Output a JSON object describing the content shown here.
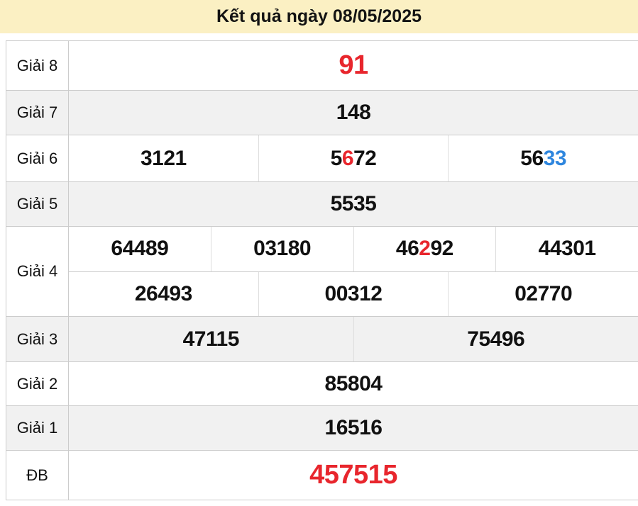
{
  "title": "Kết quả ngày 08/05/2025",
  "colors": {
    "red": "#e8262d",
    "blue": "#2e86de",
    "black": "#111111",
    "header_bg": "#fbf0c3",
    "alt_row_bg": "#f1f1f1",
    "border": "#cccccc"
  },
  "table": {
    "rows": [
      {
        "label": "Giải 8",
        "emphasis": true,
        "lines": [
          {
            "cells": [
              {
                "parts": [
                  {
                    "t": "91",
                    "c": "red"
                  }
                ]
              }
            ]
          }
        ]
      },
      {
        "label": "Giải 7",
        "emphasis": false,
        "lines": [
          {
            "cells": [
              {
                "parts": [
                  {
                    "t": "148"
                  }
                ]
              }
            ]
          }
        ]
      },
      {
        "label": "Giải 6",
        "emphasis": false,
        "lines": [
          {
            "cells": [
              {
                "parts": [
                  {
                    "t": "3121"
                  }
                ]
              },
              {
                "parts": [
                  {
                    "t": "5"
                  },
                  {
                    "t": "6",
                    "c": "red"
                  },
                  {
                    "t": "72"
                  }
                ]
              },
              {
                "parts": [
                  {
                    "t": "56"
                  },
                  {
                    "t": "33",
                    "c": "blue"
                  }
                ]
              }
            ]
          }
        ]
      },
      {
        "label": "Giải 5",
        "emphasis": false,
        "lines": [
          {
            "cells": [
              {
                "parts": [
                  {
                    "t": "5535"
                  }
                ]
              }
            ]
          }
        ]
      },
      {
        "label": "Giải 4",
        "emphasis": false,
        "lines": [
          {
            "cells": [
              {
                "parts": [
                  {
                    "t": "64489"
                  }
                ]
              },
              {
                "parts": [
                  {
                    "t": "03180"
                  }
                ]
              },
              {
                "parts": [
                  {
                    "t": "46"
                  },
                  {
                    "t": "2",
                    "c": "red"
                  },
                  {
                    "t": "92"
                  }
                ]
              },
              {
                "parts": [
                  {
                    "t": "44301"
                  }
                ]
              }
            ]
          },
          {
            "cells": [
              {
                "parts": [
                  {
                    "t": "26493"
                  }
                ]
              },
              {
                "parts": [
                  {
                    "t": "00312"
                  }
                ]
              },
              {
                "parts": [
                  {
                    "t": "02770"
                  }
                ]
              }
            ]
          }
        ]
      },
      {
        "label": "Giải 3",
        "emphasis": false,
        "lines": [
          {
            "cells": [
              {
                "parts": [
                  {
                    "t": "47115"
                  }
                ]
              },
              {
                "parts": [
                  {
                    "t": "75496"
                  }
                ]
              }
            ]
          }
        ]
      },
      {
        "label": "Giải 2",
        "emphasis": false,
        "lines": [
          {
            "cells": [
              {
                "parts": [
                  {
                    "t": "85804"
                  }
                ]
              }
            ]
          }
        ]
      },
      {
        "label": "Giải 1",
        "emphasis": false,
        "lines": [
          {
            "cells": [
              {
                "parts": [
                  {
                    "t": "16516"
                  }
                ]
              }
            ]
          }
        ]
      },
      {
        "label": "ĐB",
        "emphasis": true,
        "lines": [
          {
            "cells": [
              {
                "parts": [
                  {
                    "t": "457515",
                    "c": "red"
                  }
                ]
              }
            ]
          }
        ]
      }
    ]
  }
}
